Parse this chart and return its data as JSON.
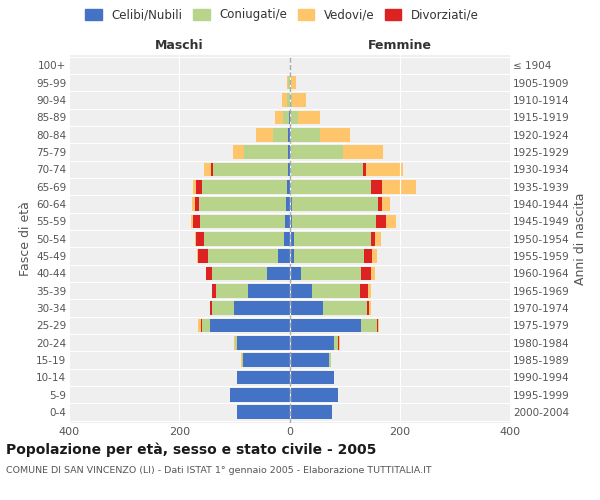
{
  "age_groups": [
    "0-4",
    "5-9",
    "10-14",
    "15-19",
    "20-24",
    "25-29",
    "30-34",
    "35-39",
    "40-44",
    "45-49",
    "50-54",
    "55-59",
    "60-64",
    "65-69",
    "70-74",
    "75-79",
    "80-84",
    "85-89",
    "90-94",
    "95-99",
    "100+"
  ],
  "birth_years": [
    "2000-2004",
    "1995-1999",
    "1990-1994",
    "1985-1989",
    "1980-1984",
    "1975-1979",
    "1970-1974",
    "1965-1969",
    "1960-1964",
    "1955-1959",
    "1950-1954",
    "1945-1949",
    "1940-1944",
    "1935-1939",
    "1930-1934",
    "1925-1929",
    "1920-1924",
    "1915-1919",
    "1910-1914",
    "1905-1909",
    "≤ 1904"
  ],
  "male_celibi": [
    95,
    108,
    95,
    85,
    95,
    145,
    100,
    75,
    40,
    20,
    10,
    8,
    6,
    4,
    3,
    2,
    2,
    1,
    0,
    0,
    0
  ],
  "male_coniugati": [
    0,
    0,
    1,
    2,
    3,
    14,
    40,
    58,
    100,
    128,
    145,
    155,
    158,
    155,
    135,
    80,
    28,
    10,
    5,
    2,
    0
  ],
  "male_vedovi": [
    0,
    0,
    0,
    1,
    2,
    5,
    0,
    0,
    0,
    1,
    2,
    3,
    4,
    6,
    13,
    20,
    30,
    15,
    8,
    2,
    0
  ],
  "male_divorziati": [
    0,
    0,
    0,
    0,
    0,
    2,
    5,
    8,
    12,
    18,
    14,
    12,
    8,
    10,
    5,
    0,
    0,
    0,
    0,
    0,
    0
  ],
  "female_nubili": [
    78,
    88,
    80,
    72,
    80,
    130,
    60,
    40,
    20,
    8,
    8,
    5,
    5,
    3,
    3,
    2,
    0,
    1,
    0,
    0,
    0
  ],
  "female_coniugate": [
    0,
    0,
    1,
    3,
    8,
    28,
    80,
    88,
    110,
    128,
    140,
    152,
    155,
    145,
    130,
    95,
    55,
    14,
    5,
    2,
    0
  ],
  "female_vedove": [
    0,
    0,
    0,
    0,
    2,
    2,
    3,
    5,
    8,
    8,
    10,
    18,
    14,
    62,
    68,
    72,
    55,
    40,
    25,
    10,
    2
  ],
  "female_divorziate": [
    0,
    0,
    0,
    0,
    2,
    2,
    5,
    14,
    18,
    14,
    8,
    18,
    8,
    20,
    5,
    0,
    0,
    0,
    0,
    0,
    0
  ],
  "color_celibi": "#4472c4",
  "color_coniugati": "#b8d48a",
  "color_vedovi": "#ffc56a",
  "color_divorziati": "#dd2222",
  "xlim": 400,
  "title": "Popolazione per età, sesso e stato civile - 2005",
  "subtitle": "COMUNE DI SAN VINCENZO (LI) - Dati ISTAT 1° gennaio 2005 - Elaborazione TUTTITALIA.IT",
  "bg_color": "#efefef"
}
